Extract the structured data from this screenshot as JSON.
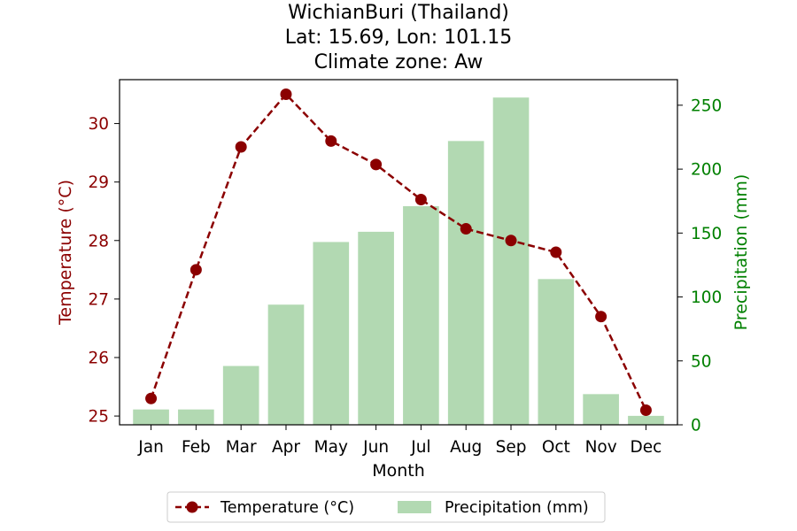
{
  "chart_data": {
    "type": "bar+line",
    "title_lines": [
      "WichianBuri (Thailand)",
      "Lat: 15.69, Lon: 101.15",
      "Climate zone: Aw"
    ],
    "xlabel": "Month",
    "ylabel_left": "Temperature (°C)",
    "ylabel_right": "Precipitation (mm)",
    "categories": [
      "Jan",
      "Feb",
      "Mar",
      "Apr",
      "May",
      "Jun",
      "Jul",
      "Aug",
      "Sep",
      "Oct",
      "Nov",
      "Dec"
    ],
    "temperature": {
      "name": "Temperature (°C)",
      "values": [
        25.3,
        27.5,
        29.6,
        30.5,
        29.7,
        29.3,
        28.7,
        28.2,
        28.0,
        27.8,
        26.7,
        25.1
      ],
      "color": "#8b0000",
      "ylim": [
        24.85,
        30.75
      ],
      "ticks": [
        25,
        26,
        27,
        28,
        29,
        30
      ]
    },
    "precipitation": {
      "name": "Precipitation (mm)",
      "values": [
        12,
        12,
        46,
        94,
        143,
        151,
        171,
        222,
        256,
        114,
        24,
        7
      ],
      "color": "#b2d9b2",
      "ylim": [
        0,
        270
      ],
      "ticks": [
        0,
        50,
        100,
        150,
        200,
        250
      ]
    },
    "tick_colors": {
      "left": "#8b0000",
      "right": "#008000"
    },
    "legend_position": "bottom-center"
  }
}
